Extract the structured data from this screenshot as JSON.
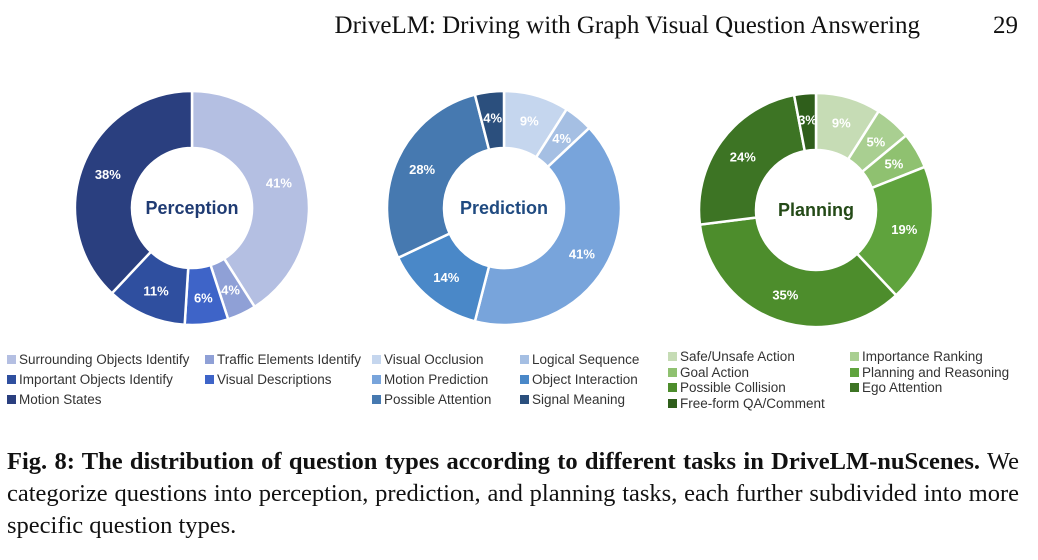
{
  "header": {
    "running_title": "DriveLM: Driving with Graph Visual Question Answering",
    "page_number": "29"
  },
  "caption": {
    "label": "Fig. 8: The distribution of question types according to different tasks in DriveLM-nuScenes.",
    "text": " We categorize questions into perception, prediction, and planning tasks, each further subdivided into more specific question types."
  },
  "chart_data": [
    {
      "type": "pie",
      "donut": true,
      "center_label": "Perception",
      "center_color": "#1f3b73",
      "slices": [
        {
          "name": "Surrounding Objects Identify",
          "value": 41,
          "label": "41%",
          "color": "#b4bfe2"
        },
        {
          "name": "Traffic Elements Identify",
          "value": 4,
          "label": "4%",
          "color": "#8fa0d6"
        },
        {
          "name": "Visual Descriptions",
          "value": 6,
          "label": "6%",
          "color": "#3e64c8"
        },
        {
          "name": "Important Objects Identify",
          "value": 11,
          "label": "11%",
          "color": "#2f4f9f"
        },
        {
          "name": "Motion States",
          "value": 38,
          "label": "38%",
          "color": "#2a3f7f"
        }
      ],
      "legend": [
        {
          "name": "Surrounding Objects Identify",
          "color": "#b4bfe2"
        },
        {
          "name": "Traffic Elements Identify",
          "color": "#8fa0d6"
        },
        {
          "name": "Important Objects Identify",
          "color": "#2f4f9f"
        },
        {
          "name": "Visual Descriptions",
          "color": "#3e64c8"
        },
        {
          "name": "Motion States",
          "color": "#2a3f7f"
        }
      ]
    },
    {
      "type": "pie",
      "donut": true,
      "center_label": "Prediction",
      "center_color": "#1f4a80",
      "slices": [
        {
          "name": "Visual Occlusion",
          "value": 9,
          "label": "9%",
          "color": "#c5d6ee"
        },
        {
          "name": "Logical Sequence",
          "value": 4,
          "label": "4%",
          "color": "#a5bfe3"
        },
        {
          "name": "Motion Prediction",
          "value": 41,
          "label": "41%",
          "color": "#78a4db"
        },
        {
          "name": "Object Interaction",
          "value": 14,
          "label": "14%",
          "color": "#4a88c8"
        },
        {
          "name": "Possible Attention",
          "value": 28,
          "label": "28%",
          "color": "#4679b0"
        },
        {
          "name": "Signal Meaning",
          "value": 4,
          "label": "4%",
          "color": "#2b4f7d"
        }
      ],
      "legend": [
        {
          "name": "Visual Occlusion",
          "color": "#c5d6ee"
        },
        {
          "name": "Logical Sequence",
          "color": "#a5bfe3"
        },
        {
          "name": "Motion Prediction",
          "color": "#78a4db"
        },
        {
          "name": "Object Interaction",
          "color": "#4a88c8"
        },
        {
          "name": "Possible Attention",
          "color": "#4679b0"
        },
        {
          "name": "Signal Meaning",
          "color": "#2b4f7d"
        }
      ]
    },
    {
      "type": "pie",
      "donut": true,
      "center_label": "Planning",
      "center_color": "#244a17",
      "slices": [
        {
          "name": "Safe/Unsafe Action",
          "value": 9,
          "label": "9%",
          "color": "#c6dcb5"
        },
        {
          "name": "Importance Ranking",
          "value": 5,
          "label": "5%",
          "color": "#a9cf91"
        },
        {
          "name": "Goal Action",
          "value": 5,
          "label": "5%",
          "color": "#8fc170"
        },
        {
          "name": "Planning and Reasoning",
          "value": 19,
          "label": "19%",
          "color": "#5fa33d"
        },
        {
          "name": "Possible Collision",
          "value": 35,
          "label": "35%",
          "color": "#4d8d2c"
        },
        {
          "name": "Ego Attention",
          "value": 24,
          "label": "24%",
          "color": "#3d7424"
        },
        {
          "name": "Free-form QA/Comment",
          "value": 3,
          "label": "3%",
          "color": "#2f5e1b"
        }
      ],
      "legend": [
        {
          "name": "Safe/Unsafe Action",
          "color": "#c6dcb5"
        },
        {
          "name": "Importance Ranking",
          "color": "#a9cf91"
        },
        {
          "name": "Goal Action",
          "color": "#8fc170"
        },
        {
          "name": "Planning and Reasoning",
          "color": "#5fa33d"
        },
        {
          "name": "Possible Collision",
          "color": "#4d8d2c"
        },
        {
          "name": "Ego Attention",
          "color": "#3d7424"
        },
        {
          "name": "Free-form QA/Comment",
          "color": "#2f5e1b"
        }
      ]
    }
  ]
}
